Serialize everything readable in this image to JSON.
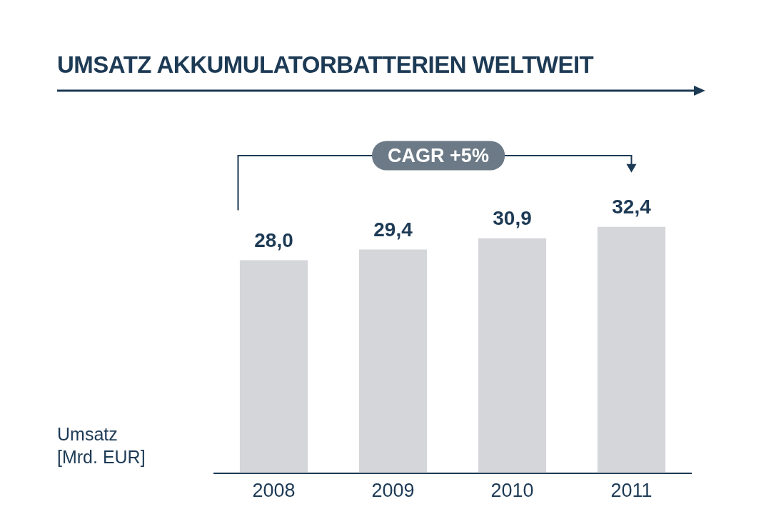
{
  "chart_data": {
    "type": "bar",
    "title": "UMSATZ AKKUMULATORBATTERIEN WELTWEIT",
    "categories": [
      "2008",
      "2009",
      "2010",
      "2011"
    ],
    "values": [
      28.0,
      29.4,
      30.9,
      32.4
    ],
    "value_labels": [
      "28,0",
      "29,4",
      "30,9",
      "32,4"
    ],
    "color": "#d4d6d9",
    "tick_labels": "x",
    "annotations": [
      "CAGR +5%",
      "Umsatz [Mrd. EUR]"
    ]
  }
}
